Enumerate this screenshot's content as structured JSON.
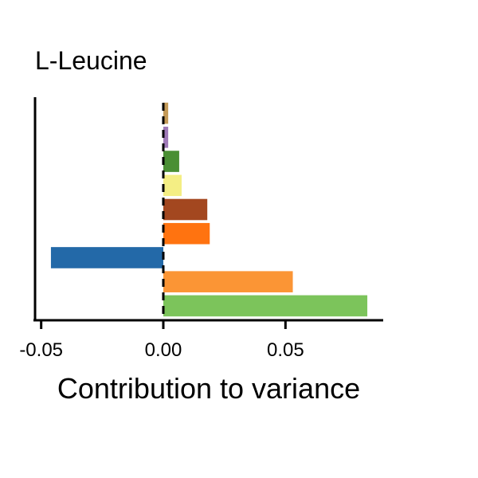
{
  "chart_data": {
    "type": "bar",
    "orientation": "horizontal",
    "title": "L-Leucine",
    "xlabel": "Contribution to variance",
    "ylabel": "",
    "xlim": [
      -0.0525,
      0.09
    ],
    "xticks": [
      -0.05,
      0.0,
      0.05
    ],
    "xtick_labels": [
      "-0.05",
      "0.00",
      "0.05"
    ],
    "zero_line": "dashed",
    "grid": false,
    "legend": "none",
    "bars": [
      {
        "value": 0.002,
        "color": "#c49a58"
      },
      {
        "value": 0.002,
        "color": "#9f7ab8"
      },
      {
        "value": 0.0065,
        "color": "#4a8f34"
      },
      {
        "value": 0.0075,
        "color": "#f4ee84"
      },
      {
        "value": 0.018,
        "color": "#a3471f"
      },
      {
        "value": 0.019,
        "color": "#ff7310"
      },
      {
        "value": -0.046,
        "color": "#2369a8"
      },
      {
        "value": 0.053,
        "color": "#fb9535"
      },
      {
        "value": 0.0835,
        "color": "#7cc45b"
      }
    ]
  }
}
